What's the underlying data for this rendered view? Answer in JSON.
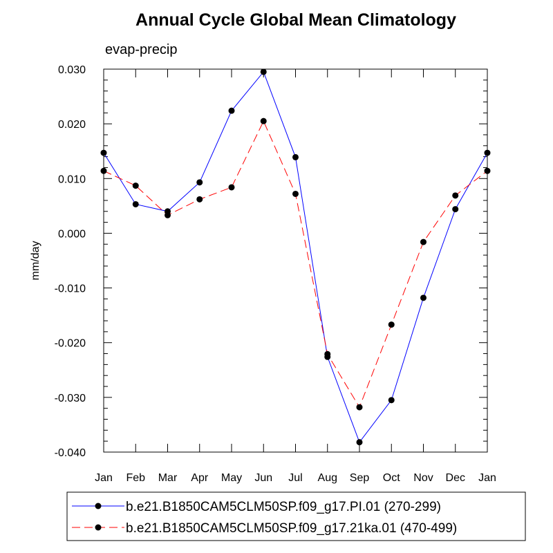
{
  "chart_data": {
    "type": "line",
    "title": "Annual Cycle Global Mean Climatology",
    "subtitle": "evap-precip",
    "xlabel": "",
    "ylabel": "mm/day",
    "categories": [
      "Jan",
      "Feb",
      "Mar",
      "Apr",
      "May",
      "Jun",
      "Jul",
      "Aug",
      "Sep",
      "Oct",
      "Nov",
      "Dec",
      "Jan"
    ],
    "ylim": [
      -0.04,
      0.03
    ],
    "y_major_ticks": [
      -0.04,
      -0.03,
      -0.02,
      -0.01,
      0.0,
      0.01,
      0.02,
      0.03
    ],
    "y_tick_labels": [
      "-0.040",
      "-0.030",
      "-0.020",
      "-0.010",
      "0.000",
      "0.010",
      "0.020",
      "0.030"
    ],
    "y_minor_step": 0.002,
    "grid": false,
    "legend_position": "bottom",
    "series": [
      {
        "name": "b.e21.B1850CAM5CLM50SP.f09_g17.PI.01 (270-299)",
        "color": "#0000ff",
        "dash": "solid",
        "values": [
          0.0147,
          0.0053,
          0.004,
          0.0093,
          0.0224,
          0.0295,
          0.0139,
          -0.0226,
          -0.0382,
          -0.0305,
          -0.0118,
          0.0044,
          0.0147
        ]
      },
      {
        "name": "b.e21.B1850CAM5CLM50SP.f09_g17.21ka.01 (470-499)",
        "color": "#ff0000",
        "dash": "dashed",
        "values": [
          0.0114,
          0.0087,
          0.0033,
          0.0062,
          0.0084,
          0.0205,
          0.0072,
          -0.0221,
          -0.0318,
          -0.0167,
          -0.0016,
          0.0069,
          0.0114
        ]
      }
    ]
  }
}
